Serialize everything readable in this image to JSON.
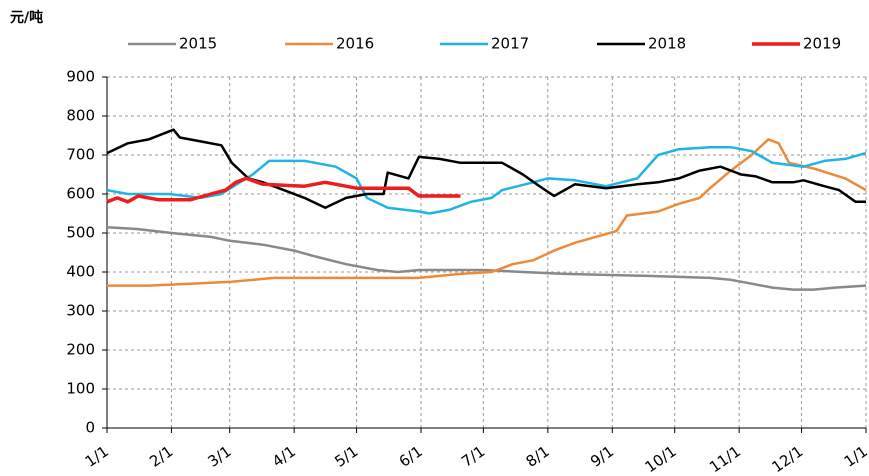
{
  "chart_data": {
    "type": "line",
    "y_label": "元/吨",
    "xlim": [
      0,
      365
    ],
    "xticks": [
      {
        "value": 0,
        "label": "1/1"
      },
      {
        "value": 31,
        "label": "2/1"
      },
      {
        "value": 59,
        "label": "3/1"
      },
      {
        "value": 90,
        "label": "4/1"
      },
      {
        "value": 120,
        "label": "5/1"
      },
      {
        "value": 151,
        "label": "6/1"
      },
      {
        "value": 181,
        "label": "7/1"
      },
      {
        "value": 212,
        "label": "8/1"
      },
      {
        "value": 243,
        "label": "9/1"
      },
      {
        "value": 273,
        "label": "10/1"
      },
      {
        "value": 304,
        "label": "11/1"
      },
      {
        "value": 334,
        "label": "12/1"
      },
      {
        "value": 365,
        "label": "1/1"
      }
    ],
    "ylim": [
      0,
      900
    ],
    "yticks": [
      0,
      100,
      200,
      300,
      400,
      500,
      600,
      700,
      800,
      900
    ],
    "grid": true,
    "legend": "top",
    "series": [
      {
        "name": "2015",
        "color": "#898989",
        "x": [
          0,
          15,
          31,
          50,
          59,
          75,
          90,
          100,
          115,
          120,
          130,
          140,
          150,
          181,
          200,
          220,
          260,
          290,
          300,
          310,
          320,
          330,
          340,
          350,
          365
        ],
        "values": [
          515,
          510,
          500,
          490,
          480,
          470,
          455,
          440,
          420,
          415,
          405,
          400,
          405,
          405,
          400,
          395,
          390,
          385,
          380,
          370,
          360,
          355,
          355,
          360,
          365
        ]
      },
      {
        "name": "2016",
        "color": "#ed8a3a",
        "x": [
          0,
          20,
          40,
          60,
          80,
          120,
          150,
          170,
          185,
          195,
          205,
          215,
          225,
          235,
          245,
          250,
          265,
          275,
          285,
          290,
          300,
          310,
          318,
          323,
          328,
          340,
          355,
          365
        ],
        "values": [
          365,
          365,
          370,
          375,
          385,
          385,
          385,
          395,
          400,
          420,
          430,
          455,
          475,
          490,
          505,
          545,
          555,
          575,
          590,
          615,
          660,
          700,
          740,
          730,
          680,
          665,
          640,
          610
        ]
      },
      {
        "name": "2017",
        "color": "#1eb4e6",
        "x": [
          0,
          10,
          30,
          45,
          55,
          70,
          78,
          95,
          110,
          120,
          125,
          135,
          150,
          155,
          165,
          175,
          185,
          190,
          205,
          212,
          225,
          240,
          255,
          265,
          275,
          290,
          300,
          310,
          320,
          335,
          345,
          355,
          365
        ],
        "values": [
          610,
          600,
          600,
          590,
          600,
          650,
          685,
          685,
          670,
          640,
          590,
          565,
          555,
          550,
          560,
          580,
          590,
          610,
          630,
          640,
          635,
          620,
          640,
          700,
          715,
          720,
          720,
          710,
          680,
          670,
          685,
          690,
          705
        ]
      },
      {
        "name": "2018",
        "color": "#000000",
        "x": [
          0,
          10,
          20,
          32,
          35,
          45,
          55,
          60,
          68,
          75,
          85,
          95,
          105,
          115,
          125,
          133,
          135,
          145,
          150,
          160,
          170,
          190,
          200,
          208,
          215,
          225,
          240,
          255,
          265,
          275,
          285,
          295,
          305,
          312,
          320,
          330,
          335,
          345,
          352,
          360,
          365
        ],
        "values": [
          705,
          730,
          740,
          765,
          745,
          735,
          725,
          680,
          640,
          630,
          610,
          590,
          565,
          590,
          600,
          600,
          655,
          640,
          695,
          690,
          680,
          680,
          650,
          620,
          595,
          625,
          615,
          625,
          630,
          640,
          660,
          670,
          650,
          645,
          630,
          630,
          635,
          620,
          610,
          580,
          580
        ]
      },
      {
        "name": "2019",
        "color": "#ee1c1c",
        "x": [
          0,
          5,
          10,
          15,
          25,
          40,
          50,
          57,
          62,
          67,
          75,
          95,
          105,
          120,
          135,
          145,
          150,
          170
        ],
        "values": [
          580,
          590,
          580,
          595,
          585,
          585,
          600,
          610,
          630,
          640,
          625,
          620,
          630,
          615,
          615,
          615,
          595,
          595
        ]
      }
    ]
  }
}
